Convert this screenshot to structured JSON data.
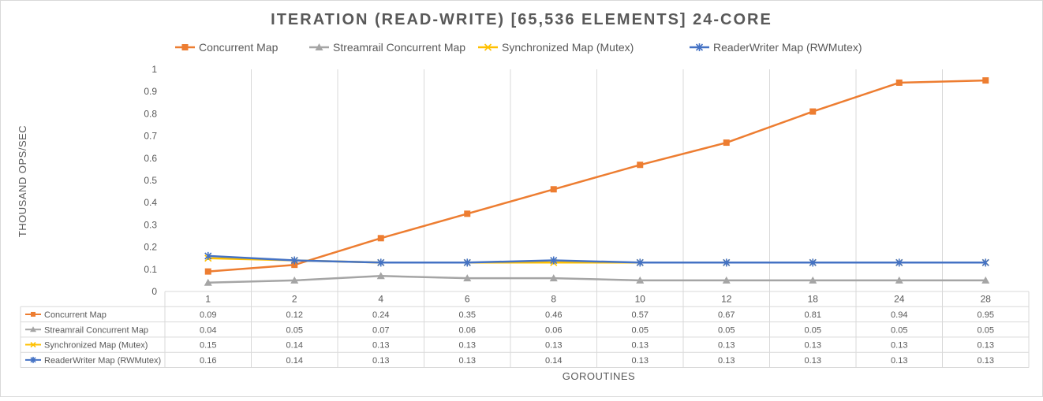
{
  "chart_data": {
    "type": "line",
    "title": "ITERATION (READ-WRITE) [65,536 ELEMENTS] 24-CORE",
    "xlabel": "GOROUTINES",
    "ylabel": "THOUSAND OPS/SEC",
    "categories": [
      "1",
      "2",
      "4",
      "6",
      "8",
      "10",
      "12",
      "18",
      "24",
      "28"
    ],
    "ylim": [
      0,
      1
    ],
    "yticks": [
      "0",
      "0.1",
      "0.2",
      "0.3",
      "0.4",
      "0.5",
      "0.6",
      "0.7",
      "0.8",
      "0.9",
      "1"
    ],
    "grid": "vertical",
    "legend": "top",
    "data_table": true,
    "series": [
      {
        "name": "Concurrent Map",
        "color": "#ED7D31",
        "marker": "square",
        "values": [
          0.09,
          0.12,
          0.24,
          0.35,
          0.46,
          0.57,
          0.67,
          0.81,
          0.94,
          0.95
        ],
        "labels": [
          "0.09",
          "0.12",
          "0.24",
          "0.35",
          "0.46",
          "0.57",
          "0.67",
          "0.81",
          "0.94",
          "0.95"
        ]
      },
      {
        "name": "Streamrail Concurrent Map",
        "color": "#A5A5A5",
        "marker": "triangle",
        "values": [
          0.04,
          0.05,
          0.07,
          0.06,
          0.06,
          0.05,
          0.05,
          0.05,
          0.05,
          0.05
        ],
        "labels": [
          "0.04",
          "0.05",
          "0.07",
          "0.06",
          "0.06",
          "0.05",
          "0.05",
          "0.05",
          "0.05",
          "0.05"
        ]
      },
      {
        "name": "Synchronized Map (Mutex)",
        "color": "#FFC000",
        "marker": "x",
        "values": [
          0.15,
          0.14,
          0.13,
          0.13,
          0.13,
          0.13,
          0.13,
          0.13,
          0.13,
          0.13
        ],
        "labels": [
          "0.15",
          "0.14",
          "0.13",
          "0.13",
          "0.13",
          "0.13",
          "0.13",
          "0.13",
          "0.13",
          "0.13"
        ]
      },
      {
        "name": "ReaderWriter Map (RWMutex)",
        "color": "#4472C4",
        "marker": "star",
        "values": [
          0.16,
          0.14,
          0.13,
          0.13,
          0.14,
          0.13,
          0.13,
          0.13,
          0.13,
          0.13
        ],
        "labels": [
          "0.16",
          "0.14",
          "0.13",
          "0.13",
          "0.14",
          "0.13",
          "0.13",
          "0.13",
          "0.13",
          "0.13"
        ]
      }
    ]
  }
}
